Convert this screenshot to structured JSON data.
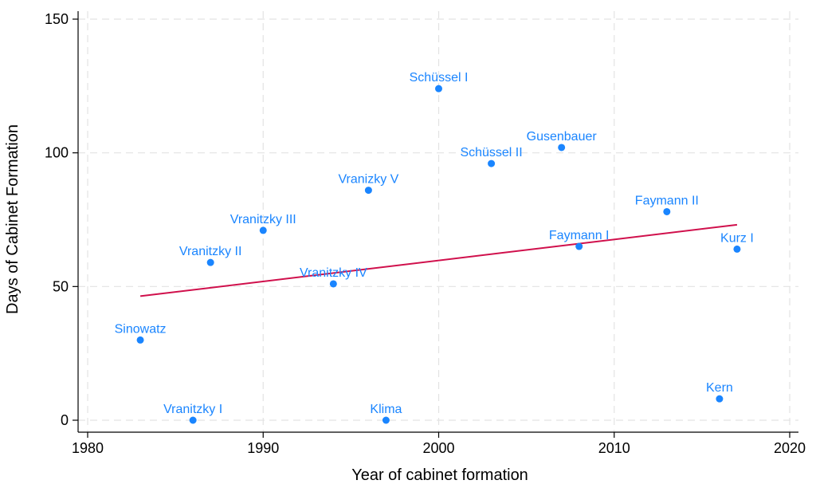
{
  "chart_data": {
    "type": "scatter",
    "title": "",
    "xlabel": "Year of cabinet formation",
    "ylabel": "Days of Cabinet Formation",
    "xlim": [
      1980,
      2020
    ],
    "ylim": [
      0,
      150
    ],
    "x_ticks": [
      1980,
      1990,
      2000,
      2010,
      2020
    ],
    "y_ticks": [
      0,
      50,
      100,
      150
    ],
    "grid": true,
    "point_color": "#1a85ff",
    "line_color": "#d0104c",
    "points": [
      {
        "label": "Sinowatz",
        "x": 1983,
        "y": 30
      },
      {
        "label": "Vranitzky I",
        "x": 1986,
        "y": 0
      },
      {
        "label": "Vranitzky II",
        "x": 1987,
        "y": 59
      },
      {
        "label": "Vranitzky III",
        "x": 1990,
        "y": 71
      },
      {
        "label": "Vranitzky IV",
        "x": 1994,
        "y": 51
      },
      {
        "label": "Vranizky V",
        "x": 1996,
        "y": 86
      },
      {
        "label": "Klima",
        "x": 1997,
        "y": 0
      },
      {
        "label": "Schüssel I",
        "x": 2000,
        "y": 124
      },
      {
        "label": "Schüssel II",
        "x": 2003,
        "y": 96
      },
      {
        "label": "Gusenbauer",
        "x": 2007,
        "y": 102
      },
      {
        "label": "Faymann I",
        "x": 2008,
        "y": 65
      },
      {
        "label": "Faymann II",
        "x": 2013,
        "y": 78
      },
      {
        "label": "Kern",
        "x": 2016,
        "y": 8
      },
      {
        "label": "Kurz I",
        "x": 2017,
        "y": 64
      }
    ],
    "fit_line": {
      "type": "linear",
      "x": [
        1983,
        2017
      ],
      "y": [
        46.4,
        73.1
      ]
    }
  }
}
